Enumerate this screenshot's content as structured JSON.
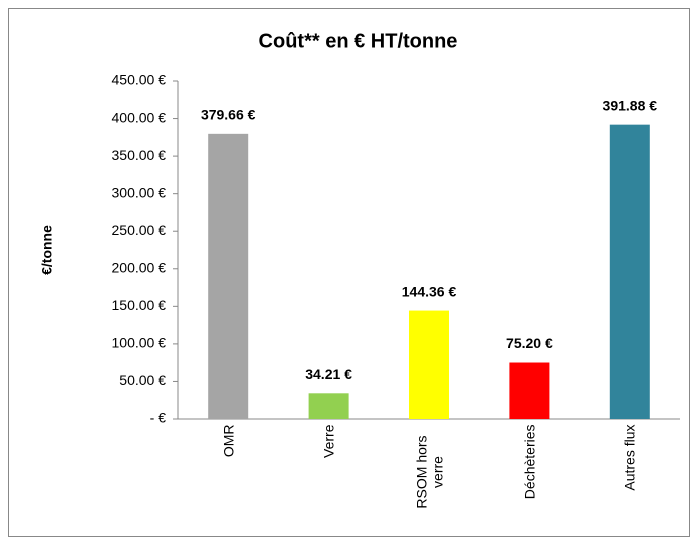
{
  "chart_data": {
    "type": "bar",
    "title": "Coût** en € HT/tonne",
    "y_label": "€/tonne",
    "categories": [
      "OMR",
      "Verre",
      "RSOM hors verre",
      "Déchèteries",
      "Autres flux"
    ],
    "values": [
      379.66,
      34.21,
      144.36,
      75.2,
      391.88
    ],
    "value_labels": [
      "379.66 €",
      "34.21 €",
      "144.36 €",
      "75.20 €",
      "391.88 €"
    ],
    "colors": [
      "#a5a5a5",
      "#92d050",
      "#ffff00",
      "#ff0000",
      "#31849b"
    ],
    "ylim": [
      0,
      450
    ],
    "yticks": [
      {
        "value": 0,
        "label": "-   €"
      },
      {
        "value": 50,
        "label": "50.00 €"
      },
      {
        "value": 100,
        "label": "100.00 €"
      },
      {
        "value": 150,
        "label": "150.00 €"
      },
      {
        "value": 200,
        "label": "200.00 €"
      },
      {
        "value": 250,
        "label": "250.00 €"
      },
      {
        "value": 300,
        "label": "300.00 €"
      },
      {
        "value": 350,
        "label": "350.00 €"
      },
      {
        "value": 400,
        "label": "400.00 €"
      },
      {
        "value": 450,
        "label": "450.00 €"
      }
    ],
    "grid": false
  }
}
